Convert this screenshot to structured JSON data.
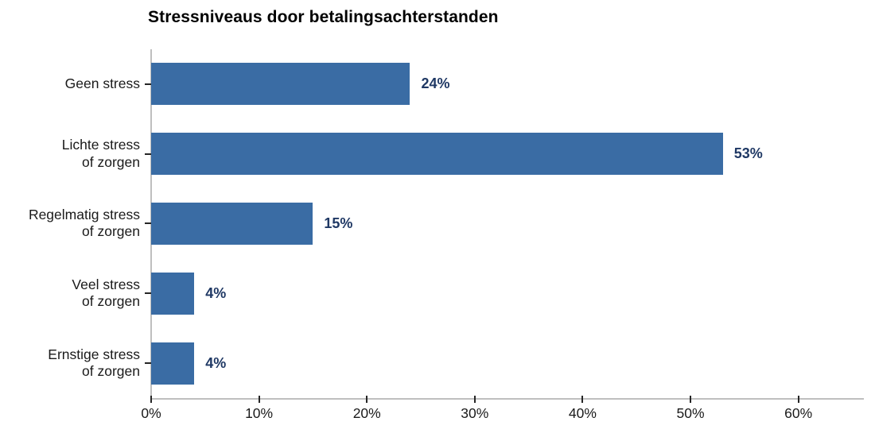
{
  "title": "Stressniveaus door betalingsachterstanden",
  "chart_data": {
    "type": "bar",
    "orientation": "horizontal",
    "title": "Stressniveaus door betalingsachterstanden",
    "categories": [
      "Geen stress",
      "Lichte stress\nof zorgen",
      "Regelmatig stress\nof zorgen",
      "Veel stress\nof zorgen",
      "Ernstige stress\nof zorgen"
    ],
    "values": [
      24,
      53,
      15,
      4,
      4
    ],
    "data_labels": [
      "24%",
      "53%",
      "15%",
      "4%",
      "4%"
    ],
    "x_ticks": [
      "0%",
      "10%",
      "20%",
      "30%",
      "40%",
      "50%",
      "60%"
    ],
    "x_tick_values": [
      0,
      10,
      20,
      30,
      40,
      50,
      60
    ],
    "xlim": [
      0,
      66
    ],
    "xlabel": "",
    "ylabel": "",
    "grid": false,
    "legend_position": "none",
    "bar_color": "#3A6CA4",
    "value_label_color": "#1F3864",
    "axis_line_color": "#BFBFBF",
    "tick_color": "#262626",
    "text_color": "#1A1A1A",
    "background_color": "#FFFFFF"
  }
}
